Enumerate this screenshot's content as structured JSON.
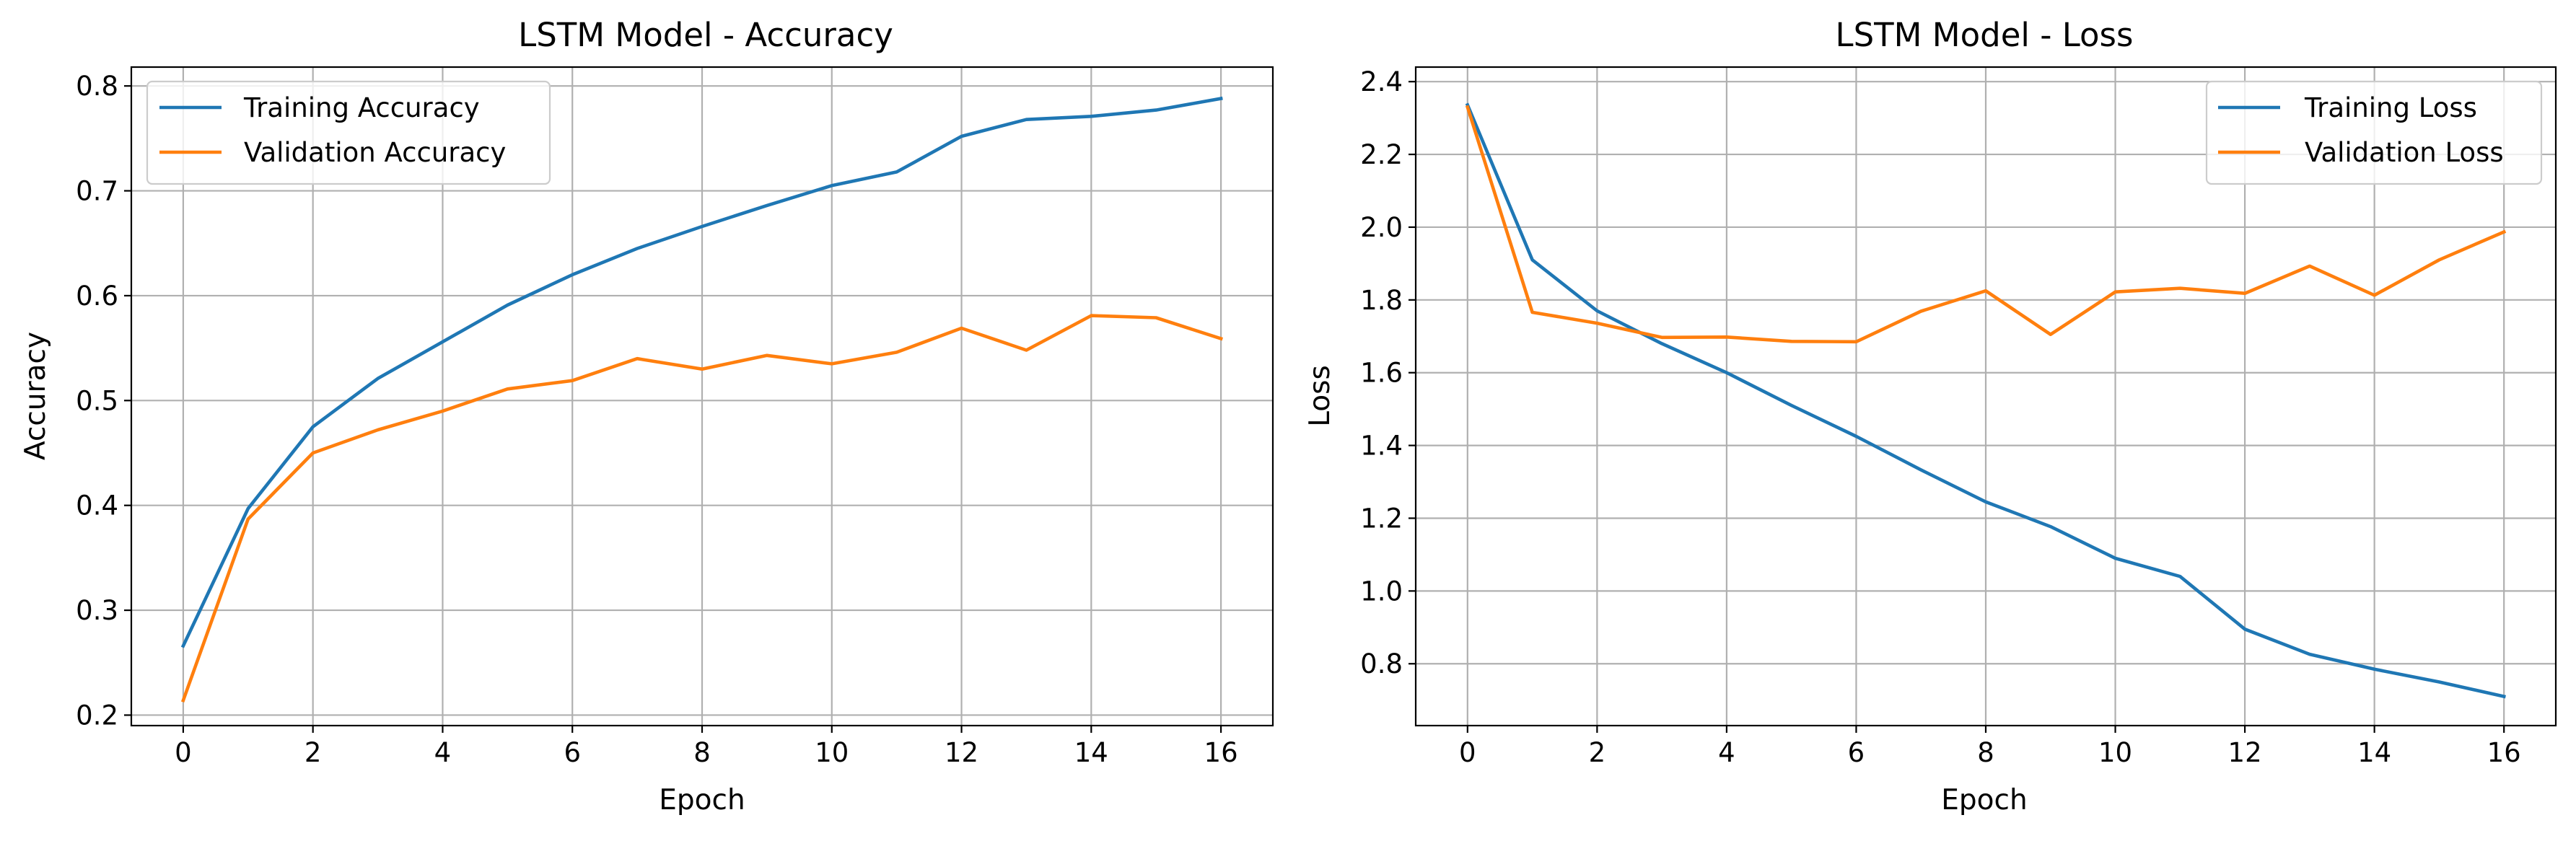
{
  "chart_data": [
    {
      "type": "line",
      "title": "LSTM Model - Accuracy",
      "xlabel": "Epoch",
      "ylabel": "Accuracy",
      "x": [
        0,
        1,
        2,
        3,
        4,
        5,
        6,
        7,
        8,
        9,
        10,
        11,
        12,
        13,
        14,
        15,
        16
      ],
      "xlim": [
        -0.8,
        16.8
      ],
      "ylim": [
        0.19,
        0.818
      ],
      "xticks": [
        0,
        2,
        4,
        6,
        8,
        10,
        12,
        14,
        16
      ],
      "xtick_labels": [
        "0",
        "2",
        "4",
        "6",
        "8",
        "10",
        "12",
        "14",
        "16"
      ],
      "yticks": [
        0.2,
        0.3,
        0.4,
        0.5,
        0.6,
        0.7,
        0.8
      ],
      "ytick_labels": [
        "0.2",
        "0.3",
        "0.4",
        "0.5",
        "0.6",
        "0.7",
        "0.8"
      ],
      "grid": true,
      "legend_position": "upper left",
      "series": [
        {
          "name": "Training Accuracy",
          "color": "#1f77b4",
          "values": [
            0.266,
            0.397,
            0.475,
            0.521,
            0.556,
            0.591,
            0.62,
            0.645,
            0.666,
            0.686,
            0.705,
            0.718,
            0.752,
            0.768,
            0.771,
            0.777,
            0.788
          ]
        },
        {
          "name": "Validation Accuracy",
          "color": "#ff7f0e",
          "values": [
            0.214,
            0.387,
            0.45,
            0.472,
            0.49,
            0.511,
            0.519,
            0.54,
            0.53,
            0.543,
            0.535,
            0.546,
            0.569,
            0.548,
            0.581,
            0.579,
            0.559
          ]
        }
      ]
    },
    {
      "type": "line",
      "title": "LSTM Model - Loss",
      "xlabel": "Epoch",
      "ylabel": "Loss",
      "x": [
        0,
        1,
        2,
        3,
        4,
        5,
        6,
        7,
        8,
        9,
        10,
        11,
        12,
        13,
        14,
        15,
        16
      ],
      "xlim": [
        -0.8,
        16.8
      ],
      "ylim": [
        0.63,
        2.44
      ],
      "xticks": [
        0,
        2,
        4,
        6,
        8,
        10,
        12,
        14,
        16
      ],
      "xtick_labels": [
        "0",
        "2",
        "4",
        "6",
        "8",
        "10",
        "12",
        "14",
        "16"
      ],
      "yticks": [
        0.8,
        1.0,
        1.2,
        1.4,
        1.6,
        1.8,
        2.0,
        2.2,
        2.4
      ],
      "ytick_labels": [
        "0.8",
        "1.0",
        "1.2",
        "1.4",
        "1.6",
        "1.8",
        "2.0",
        "2.2",
        "2.4"
      ],
      "grid": true,
      "legend_position": "upper right",
      "series": [
        {
          "name": "Training Loss",
          "color": "#1f77b4",
          "values": [
            2.336,
            1.91,
            1.77,
            1.68,
            1.6,
            1.51,
            1.425,
            1.333,
            1.245,
            1.177,
            1.09,
            1.04,
            0.895,
            0.826,
            0.785,
            0.75,
            0.71
          ]
        },
        {
          "name": "Validation Loss",
          "color": "#ff7f0e",
          "values": [
            2.33,
            1.766,
            1.736,
            1.697,
            1.698,
            1.686,
            1.685,
            1.769,
            1.825,
            1.705,
            1.822,
            1.832,
            1.818,
            1.893,
            1.813,
            1.91,
            1.987
          ]
        }
      ]
    }
  ]
}
